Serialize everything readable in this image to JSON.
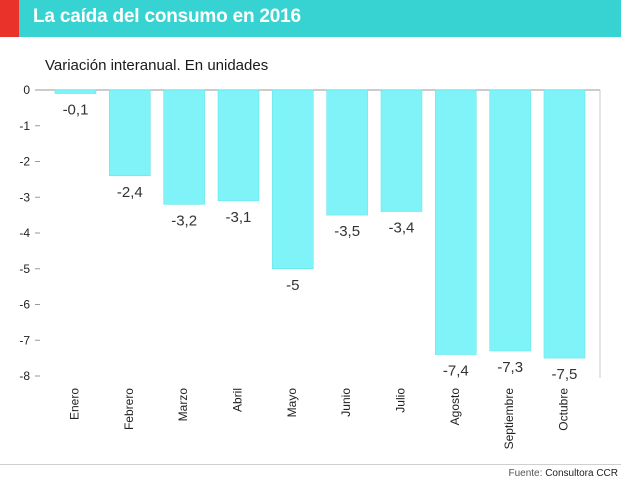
{
  "header": {
    "title": "La caída del consumo en 2016"
  },
  "colors": {
    "header_bg": "#37d3d2",
    "accent": "#e8322a",
    "bar": "#7ff3f7"
  },
  "footer": {
    "source_label": "Fuente:",
    "source_name": "Consultora CCR"
  },
  "chart_data": {
    "type": "bar",
    "title": "Variación interanual. En unidades",
    "categories": [
      "Enero",
      "Febrero",
      "Marzo",
      "Abril",
      "Mayo",
      "Junio",
      "Julio",
      "Agosto",
      "Septiembre",
      "Octubre"
    ],
    "values": [
      -0.1,
      -2.4,
      -3.2,
      -3.1,
      -5,
      -3.5,
      -3.4,
      -7.4,
      -7.3,
      -7.5
    ],
    "value_labels": [
      "-0,1",
      "-2,4",
      "-3,2",
      "-3,1",
      "-5",
      "-3,5",
      "-3,4",
      "-7,4",
      "-7,3",
      "-7,5"
    ],
    "y_ticks": [
      0,
      -1,
      -2,
      -3,
      -4,
      -5,
      -6,
      -7,
      -8
    ],
    "y_tick_labels": [
      "0",
      "-1",
      "-2",
      "-3",
      "-4",
      "-5",
      "-6",
      "-7",
      "-8"
    ],
    "ylim": [
      -8,
      0
    ],
    "xlabel": "",
    "ylabel": "",
    "grid": false
  }
}
